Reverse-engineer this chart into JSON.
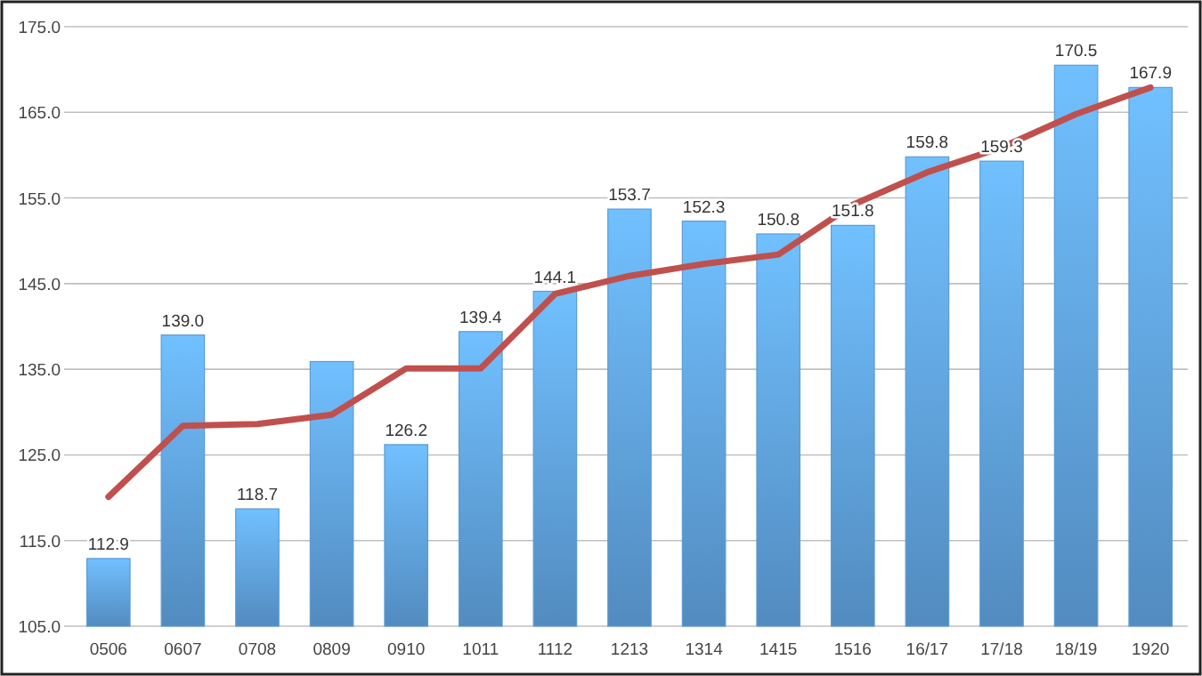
{
  "chart_data": {
    "type": "bar",
    "categories": [
      "0506",
      "0607",
      "0708",
      "0809",
      "0910",
      "1011",
      "1112",
      "1213",
      "1314",
      "1415",
      "1516",
      "16/17",
      "17/18",
      "18/19",
      "1920"
    ],
    "series": [
      {
        "color": "#5b9bd5",
        "values": [
          112.9,
          139.0,
          118.7,
          135.9,
          126.2,
          139.4,
          144.1,
          153.7,
          152.3,
          150.8,
          151.8,
          159.8,
          159.3,
          170.5,
          167.9
        ],
        "value_labels": [
          "112.9",
          "139.0",
          "118.7",
          null,
          "126.2",
          "139.4",
          "144.1",
          "153.7",
          "152.3",
          "150.8",
          "151.8",
          "159.8",
          "159.3",
          "170.5",
          "167.9"
        ]
      },
      {
        "type": "line",
        "color": "#c0504d",
        "values": [
          120.1,
          128.4,
          128.6,
          129.7,
          135.1,
          135.1,
          143.8,
          145.9,
          147.3,
          148.4,
          154.2,
          158.0,
          160.9,
          164.8,
          167.9
        ]
      }
    ],
    "ylim": [
      105,
      175
    ],
    "yticks": [
      {
        "value": 105,
        "label": "105.0"
      },
      {
        "value": 115,
        "label": "115.0"
      },
      {
        "value": 125,
        "label": "125.0"
      },
      {
        "value": 135,
        "label": "135.0"
      },
      {
        "value": 145,
        "label": "145.0"
      },
      {
        "value": 155,
        "label": "155.0"
      },
      {
        "value": 165,
        "label": "165.0"
      },
      {
        "value": 175,
        "label": "175.0"
      }
    ],
    "grid": "y",
    "marker": "none",
    "line_style": "solid"
  }
}
